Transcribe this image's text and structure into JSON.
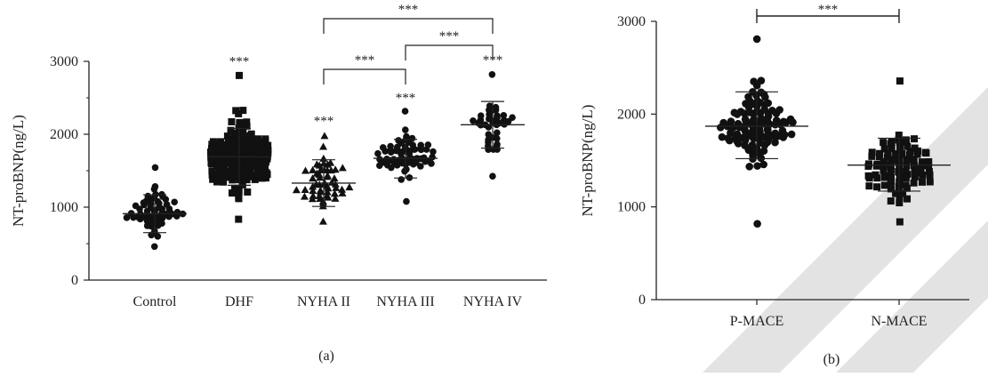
{
  "chart_data": [
    {
      "type": "scatter",
      "panel_label": "(a)",
      "ylabel": "NT-proBNP(ng/L)",
      "ylim": [
        0,
        3000
      ],
      "yticks": [
        0,
        1000,
        2000,
        3000
      ],
      "categories": [
        "Control",
        "DHF",
        "NYHA II",
        "NYHA III",
        "NYHA IV"
      ],
      "grid": false,
      "groups": [
        {
          "name": "Control",
          "marker": "circle",
          "n": 60,
          "mean": 910,
          "sd_low": 650,
          "sd_high": 1170,
          "min": 450,
          "max": 1550,
          "sig": ""
        },
        {
          "name": "DHF",
          "marker": "square",
          "n": 180,
          "mean": 1690,
          "sd_low": 1300,
          "sd_high": 2080,
          "min": 820,
          "max": 2800,
          "sig": "***"
        },
        {
          "name": "NYHA II",
          "marker": "triangle",
          "n": 55,
          "mean": 1330,
          "sd_low": 1010,
          "sd_high": 1650,
          "min": 820,
          "max": 1980,
          "sig": "***"
        },
        {
          "name": "NYHA III",
          "marker": "circle",
          "n": 65,
          "mean": 1670,
          "sd_low": 1400,
          "sd_high": 1930,
          "min": 1060,
          "max": 2300,
          "sig": "***"
        },
        {
          "name": "NYHA IV",
          "marker": "circle",
          "n": 40,
          "mean": 2130,
          "sd_low": 1810,
          "sd_high": 2450,
          "min": 1430,
          "max": 2820,
          "sig": "***"
        }
      ],
      "comparisons": [
        {
          "from": "NYHA II",
          "to": "NYHA III",
          "label": "***"
        },
        {
          "from": "NYHA III",
          "to": "NYHA IV",
          "label": "***"
        },
        {
          "from": "NYHA II",
          "to": "NYHA IV",
          "label": "***"
        }
      ]
    },
    {
      "type": "scatter",
      "panel_label": "(b)",
      "ylabel": "NT-proBNP(ng/L)",
      "ylim": [
        0,
        3000
      ],
      "yticks": [
        0,
        1000,
        2000,
        3000
      ],
      "categories": [
        "P-MACE",
        "N-MACE"
      ],
      "grid": false,
      "groups": [
        {
          "name": "P-MACE",
          "marker": "circle",
          "n": 110,
          "mean": 1870,
          "sd_low": 1520,
          "sd_high": 2240,
          "min": 820,
          "max": 2810,
          "sig": ""
        },
        {
          "name": "N-MACE",
          "marker": "square",
          "n": 100,
          "mean": 1450,
          "sd_low": 1170,
          "sd_high": 1740,
          "min": 830,
          "max": 2370,
          "sig": ""
        }
      ],
      "comparisons": [
        {
          "from": "P-MACE",
          "to": "N-MACE",
          "label": "***"
        }
      ]
    }
  ],
  "watermark": {
    "color": "#e3e3e3"
  }
}
